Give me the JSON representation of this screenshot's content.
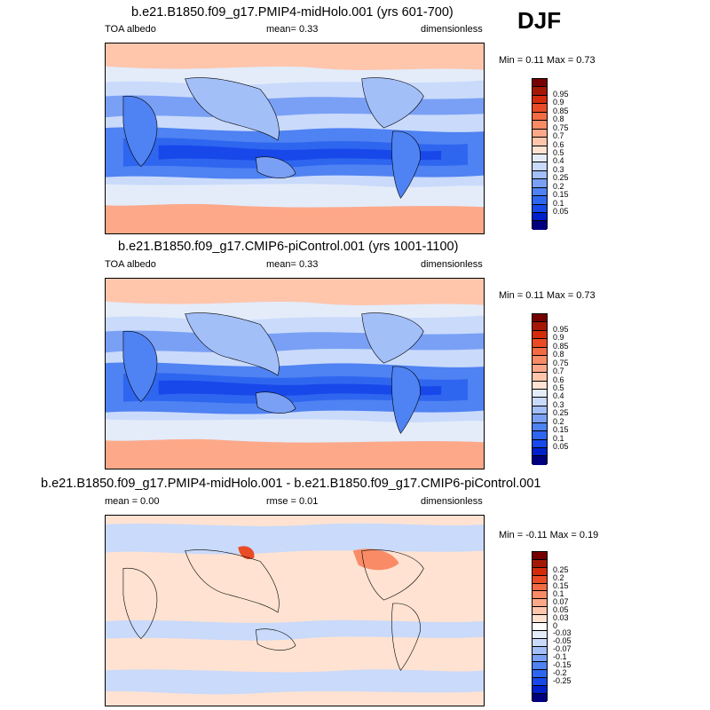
{
  "season": "DJF",
  "colors": {
    "abs_scale": [
      "#00007f",
      "#0020cc",
      "#1848ea",
      "#2f66f0",
      "#4f82f2",
      "#7aa0f5",
      "#a3bff8",
      "#c9dafb",
      "#e4ecfa",
      "#ffe2d1",
      "#ffc6ac",
      "#fda989",
      "#f98b66",
      "#f36b45",
      "#e94b26",
      "#d42c0b",
      "#a51705",
      "#760000"
    ],
    "diff_scale": [
      "#00007f",
      "#0020cc",
      "#1848ea",
      "#2f66f0",
      "#4f82f2",
      "#7aa0f5",
      "#a3bff8",
      "#c9dafb",
      "#e4ecfa",
      "#ffffff",
      "#ffe2d1",
      "#ffc6ac",
      "#fda989",
      "#f98b66",
      "#f36b45",
      "#e94b26",
      "#d42c0b",
      "#a51705",
      "#760000"
    ]
  },
  "panels": [
    {
      "title": "b.e21.B1850.f09_g17.PMIP4-midHolo.001 (yrs 601-700)",
      "left_label": "TOA albedo",
      "center_label": "mean=   0.33",
      "right_label": "dimensionless",
      "minmax": "Min =   0.11 Max =   0.73",
      "ticks": [
        "0.95",
        "0.9",
        "0.85",
        "0.8",
        "0.75",
        "0.7",
        "0.6",
        "0.5",
        "0.4",
        "0.3",
        "0.25",
        "0.2",
        "0.15",
        "0.1",
        "0.05"
      ]
    },
    {
      "title": "b.e21.B1850.f09_g17.CMIP6-piControl.001 (yrs 1001-1100)",
      "left_label": "TOA albedo",
      "center_label": "mean=   0.33",
      "right_label": "dimensionless",
      "minmax": "Min =   0.11 Max =   0.73",
      "ticks": [
        "0.95",
        "0.9",
        "0.85",
        "0.8",
        "0.75",
        "0.7",
        "0.6",
        "0.5",
        "0.4",
        "0.3",
        "0.25",
        "0.2",
        "0.15",
        "0.1",
        "0.05"
      ]
    },
    {
      "title": "b.e21.B1850.f09_g17.PMIP4-midHolo.001 - b.e21.B1850.f09_g17.CMIP6-piControl.001",
      "left_label": "mean =   0.00",
      "center_label": "rmse =   0.01",
      "right_label": "dimensionless",
      "minmax": "Min =  -0.11 Max =   0.19",
      "ticks": [
        "0.25",
        "0.2",
        "0.15",
        "0.1",
        "0.07",
        "0.05",
        "0.03",
        "0",
        "-0.03",
        "-0.05",
        "-0.07",
        "-0.1",
        "-0.15",
        "-0.2",
        "-0.25"
      ]
    }
  ]
}
